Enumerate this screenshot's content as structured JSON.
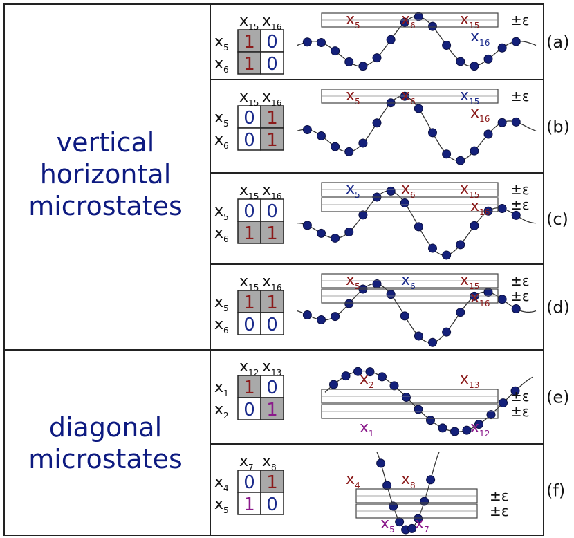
{
  "groups": [
    {
      "label_lines": [
        "vertical",
        "horizontal",
        "microstates"
      ]
    },
    {
      "label_lines": [
        "diagonal",
        "microstates"
      ]
    }
  ],
  "panels": [
    {
      "tag": "(a)",
      "col_labels": [
        {
          "base": "x",
          "sub": "15"
        },
        {
          "base": "x",
          "sub": "16"
        }
      ],
      "row_labels": [
        {
          "base": "x",
          "sub": "5"
        },
        {
          "base": "x",
          "sub": "6"
        }
      ],
      "cells": [
        [
          {
            "v": "1",
            "shaded": true,
            "color": "#8b1a1a"
          },
          {
            "v": "0",
            "shaded": false,
            "color": "#1a2a8b"
          }
        ],
        [
          {
            "v": "1",
            "shaded": true,
            "color": "#8b1a1a"
          },
          {
            "v": "0",
            "shaded": false,
            "color": "#1a2a8b"
          }
        ]
      ],
      "eps": [
        "±ε"
      ],
      "point_labels": [
        {
          "base": "x",
          "sub": "5",
          "color": "#8b1a1a"
        },
        {
          "base": "x",
          "sub": "6",
          "color": "#8b1a1a"
        },
        {
          "base": "x",
          "sub": "15",
          "color": "#8b1a1a"
        },
        {
          "base": "x",
          "sub": "16",
          "color": "#1a2a8b"
        }
      ]
    },
    {
      "tag": "(b)",
      "col_labels": [
        {
          "base": "x",
          "sub": "15"
        },
        {
          "base": "x",
          "sub": "16"
        }
      ],
      "row_labels": [
        {
          "base": "x",
          "sub": "5"
        },
        {
          "base": "x",
          "sub": "6"
        }
      ],
      "cells": [
        [
          {
            "v": "0",
            "shaded": false,
            "color": "#1a2a8b"
          },
          {
            "v": "1",
            "shaded": true,
            "color": "#8b1a1a"
          }
        ],
        [
          {
            "v": "0",
            "shaded": false,
            "color": "#1a2a8b"
          },
          {
            "v": "1",
            "shaded": true,
            "color": "#8b1a1a"
          }
        ]
      ],
      "eps": [
        "±ε"
      ],
      "point_labels": [
        {
          "base": "x",
          "sub": "5",
          "color": "#8b1a1a"
        },
        {
          "base": "x",
          "sub": "6",
          "color": "#8b1a1a"
        },
        {
          "base": "x",
          "sub": "15",
          "color": "#1a2a8b"
        },
        {
          "base": "x",
          "sub": "16",
          "color": "#8b1a1a"
        }
      ]
    },
    {
      "tag": "(c)",
      "col_labels": [
        {
          "base": "x",
          "sub": "15"
        },
        {
          "base": "x",
          "sub": "16"
        }
      ],
      "row_labels": [
        {
          "base": "x",
          "sub": "5"
        },
        {
          "base": "x",
          "sub": "6"
        }
      ],
      "cells": [
        [
          {
            "v": "0",
            "shaded": false,
            "color": "#1a2a8b"
          },
          {
            "v": "0",
            "shaded": false,
            "color": "#1a2a8b"
          }
        ],
        [
          {
            "v": "1",
            "shaded": true,
            "color": "#8b1a1a"
          },
          {
            "v": "1",
            "shaded": true,
            "color": "#8b1a1a"
          }
        ]
      ],
      "eps": [
        "±ε",
        "±ε"
      ],
      "point_labels": [
        {
          "base": "x",
          "sub": "5",
          "color": "#1a2a8b"
        },
        {
          "base": "x",
          "sub": "6",
          "color": "#8b1a1a"
        },
        {
          "base": "x",
          "sub": "15",
          "color": "#8b1a1a"
        },
        {
          "base": "x",
          "sub": "16",
          "color": "#8b1a1a"
        }
      ]
    },
    {
      "tag": "(d)",
      "col_labels": [
        {
          "base": "x",
          "sub": "15"
        },
        {
          "base": "x",
          "sub": "16"
        }
      ],
      "row_labels": [
        {
          "base": "x",
          "sub": "5"
        },
        {
          "base": "x",
          "sub": "6"
        }
      ],
      "cells": [
        [
          {
            "v": "1",
            "shaded": true,
            "color": "#8b1a1a"
          },
          {
            "v": "1",
            "shaded": true,
            "color": "#8b1a1a"
          }
        ],
        [
          {
            "v": "0",
            "shaded": false,
            "color": "#1a2a8b"
          },
          {
            "v": "0",
            "shaded": false,
            "color": "#1a2a8b"
          }
        ]
      ],
      "eps": [
        "±ε",
        "±ε"
      ],
      "point_labels": [
        {
          "base": "x",
          "sub": "5",
          "color": "#8b1a1a"
        },
        {
          "base": "x",
          "sub": "6",
          "color": "#1a2a8b"
        },
        {
          "base": "x",
          "sub": "15",
          "color": "#8b1a1a"
        },
        {
          "base": "x",
          "sub": "16",
          "color": "#8b1a1a"
        }
      ]
    },
    {
      "tag": "(e)",
      "col_labels": [
        {
          "base": "x",
          "sub": "12"
        },
        {
          "base": "x",
          "sub": "13"
        }
      ],
      "row_labels": [
        {
          "base": "x",
          "sub": "1"
        },
        {
          "base": "x",
          "sub": "2"
        }
      ],
      "cells": [
        [
          {
            "v": "1",
            "shaded": true,
            "color": "#8b1a1a"
          },
          {
            "v": "0",
            "shaded": false,
            "color": "#1a2a8b"
          }
        ],
        [
          {
            "v": "0",
            "shaded": false,
            "color": "#1a2a8b"
          },
          {
            "v": "1",
            "shaded": true,
            "color": "#8b1a8b"
          }
        ]
      ],
      "eps": [
        "±ε",
        "±ε"
      ],
      "point_labels": [
        {
          "base": "x",
          "sub": "2",
          "color": "#8b1a1a"
        },
        {
          "base": "x",
          "sub": "13",
          "color": "#8b1a1a"
        },
        {
          "base": "x",
          "sub": "1",
          "color": "#8b1a8b"
        },
        {
          "base": "x",
          "sub": "12",
          "color": "#8b1a8b"
        }
      ]
    },
    {
      "tag": "(f)",
      "col_labels": [
        {
          "base": "x",
          "sub": "7"
        },
        {
          "base": "x",
          "sub": "8"
        }
      ],
      "row_labels": [
        {
          "base": "x",
          "sub": "4"
        },
        {
          "base": "x",
          "sub": "5"
        }
      ],
      "cells": [
        [
          {
            "v": "0",
            "shaded": false,
            "color": "#1a2a8b"
          },
          {
            "v": "1",
            "shaded": true,
            "color": "#8b1a1a"
          }
        ],
        [
          {
            "v": "1",
            "shaded": false,
            "color": "#8b1a8b"
          },
          {
            "v": "0",
            "shaded": false,
            "color": "#1a2a8b"
          }
        ]
      ],
      "eps": [
        "±ε",
        "±ε"
      ],
      "point_labels": [
        {
          "base": "x",
          "sub": "4",
          "color": "#8b1a1a"
        },
        {
          "base": "x",
          "sub": "8",
          "color": "#8b1a1a"
        },
        {
          "base": "x",
          "sub": "5",
          "color": "#8b1a8b"
        },
        {
          "base": "x",
          "sub": "7",
          "color": "#8b1a8b"
        }
      ]
    }
  ]
}
